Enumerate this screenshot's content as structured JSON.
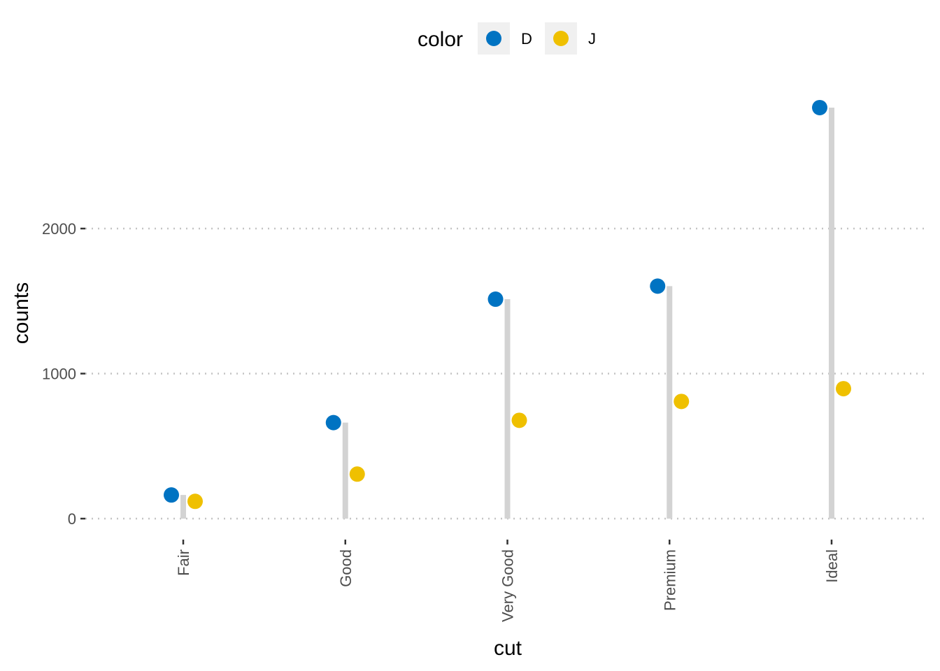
{
  "chart_data": {
    "type": "lollipop",
    "categories": [
      "Fair",
      "Good",
      "Very Good",
      "Premium",
      "Ideal"
    ],
    "series": [
      {
        "name": "D",
        "values": [
          163,
          662,
          1513,
          1603,
          2834
        ],
        "color": "#0073C2"
      },
      {
        "name": "J",
        "values": [
          119,
          307,
          678,
          808,
          896
        ],
        "color": "#EFC000"
      }
    ],
    "xlabel": "cut",
    "ylabel": "counts",
    "yticks": [
      0,
      1000,
      2000
    ],
    "ylim": [
      0,
      2834
    ],
    "legend": {
      "title": "color",
      "position": "top"
    },
    "grid": "horizontal dotted",
    "stem_color": "#d3d3d3"
  }
}
